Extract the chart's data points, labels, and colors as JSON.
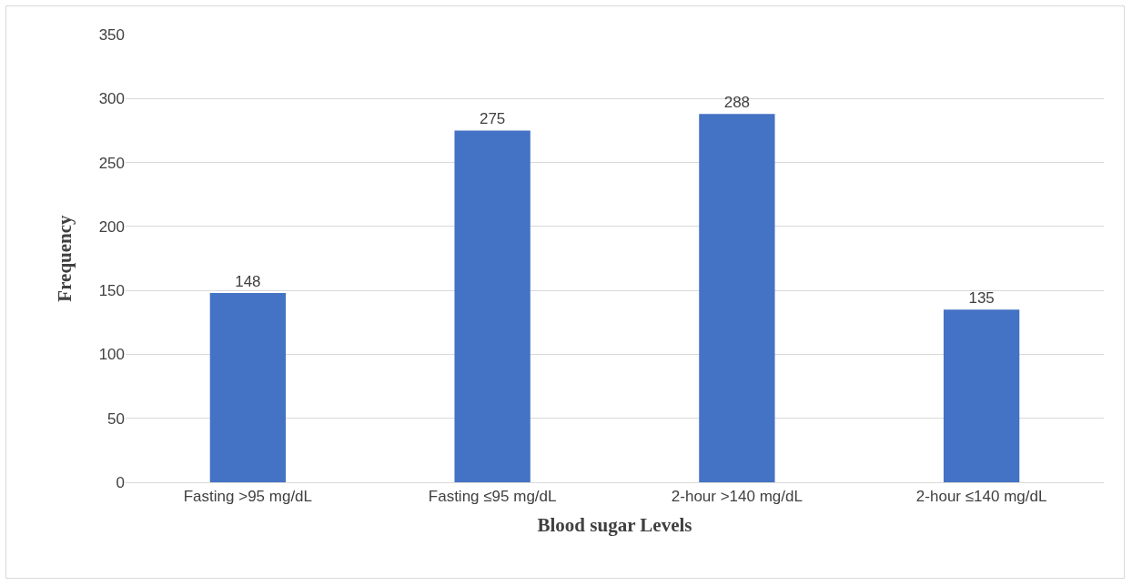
{
  "chart_data": {
    "type": "bar",
    "xlabel": "Blood sugar Levels",
    "ylabel": "Frequency",
    "categories": [
      "Fasting >95 mg/dL",
      "Fasting ≤95 mg/dL",
      "2-hour >140 mg/dL",
      "2-hour ≤140 mg/dL"
    ],
    "values": [
      148,
      275,
      288,
      135
    ],
    "color": "#4472c4",
    "ylim": [
      0,
      350
    ],
    "yticks": [
      0,
      50,
      100,
      150,
      200,
      250,
      300,
      350
    ],
    "grid": "y",
    "data_labels": true
  }
}
